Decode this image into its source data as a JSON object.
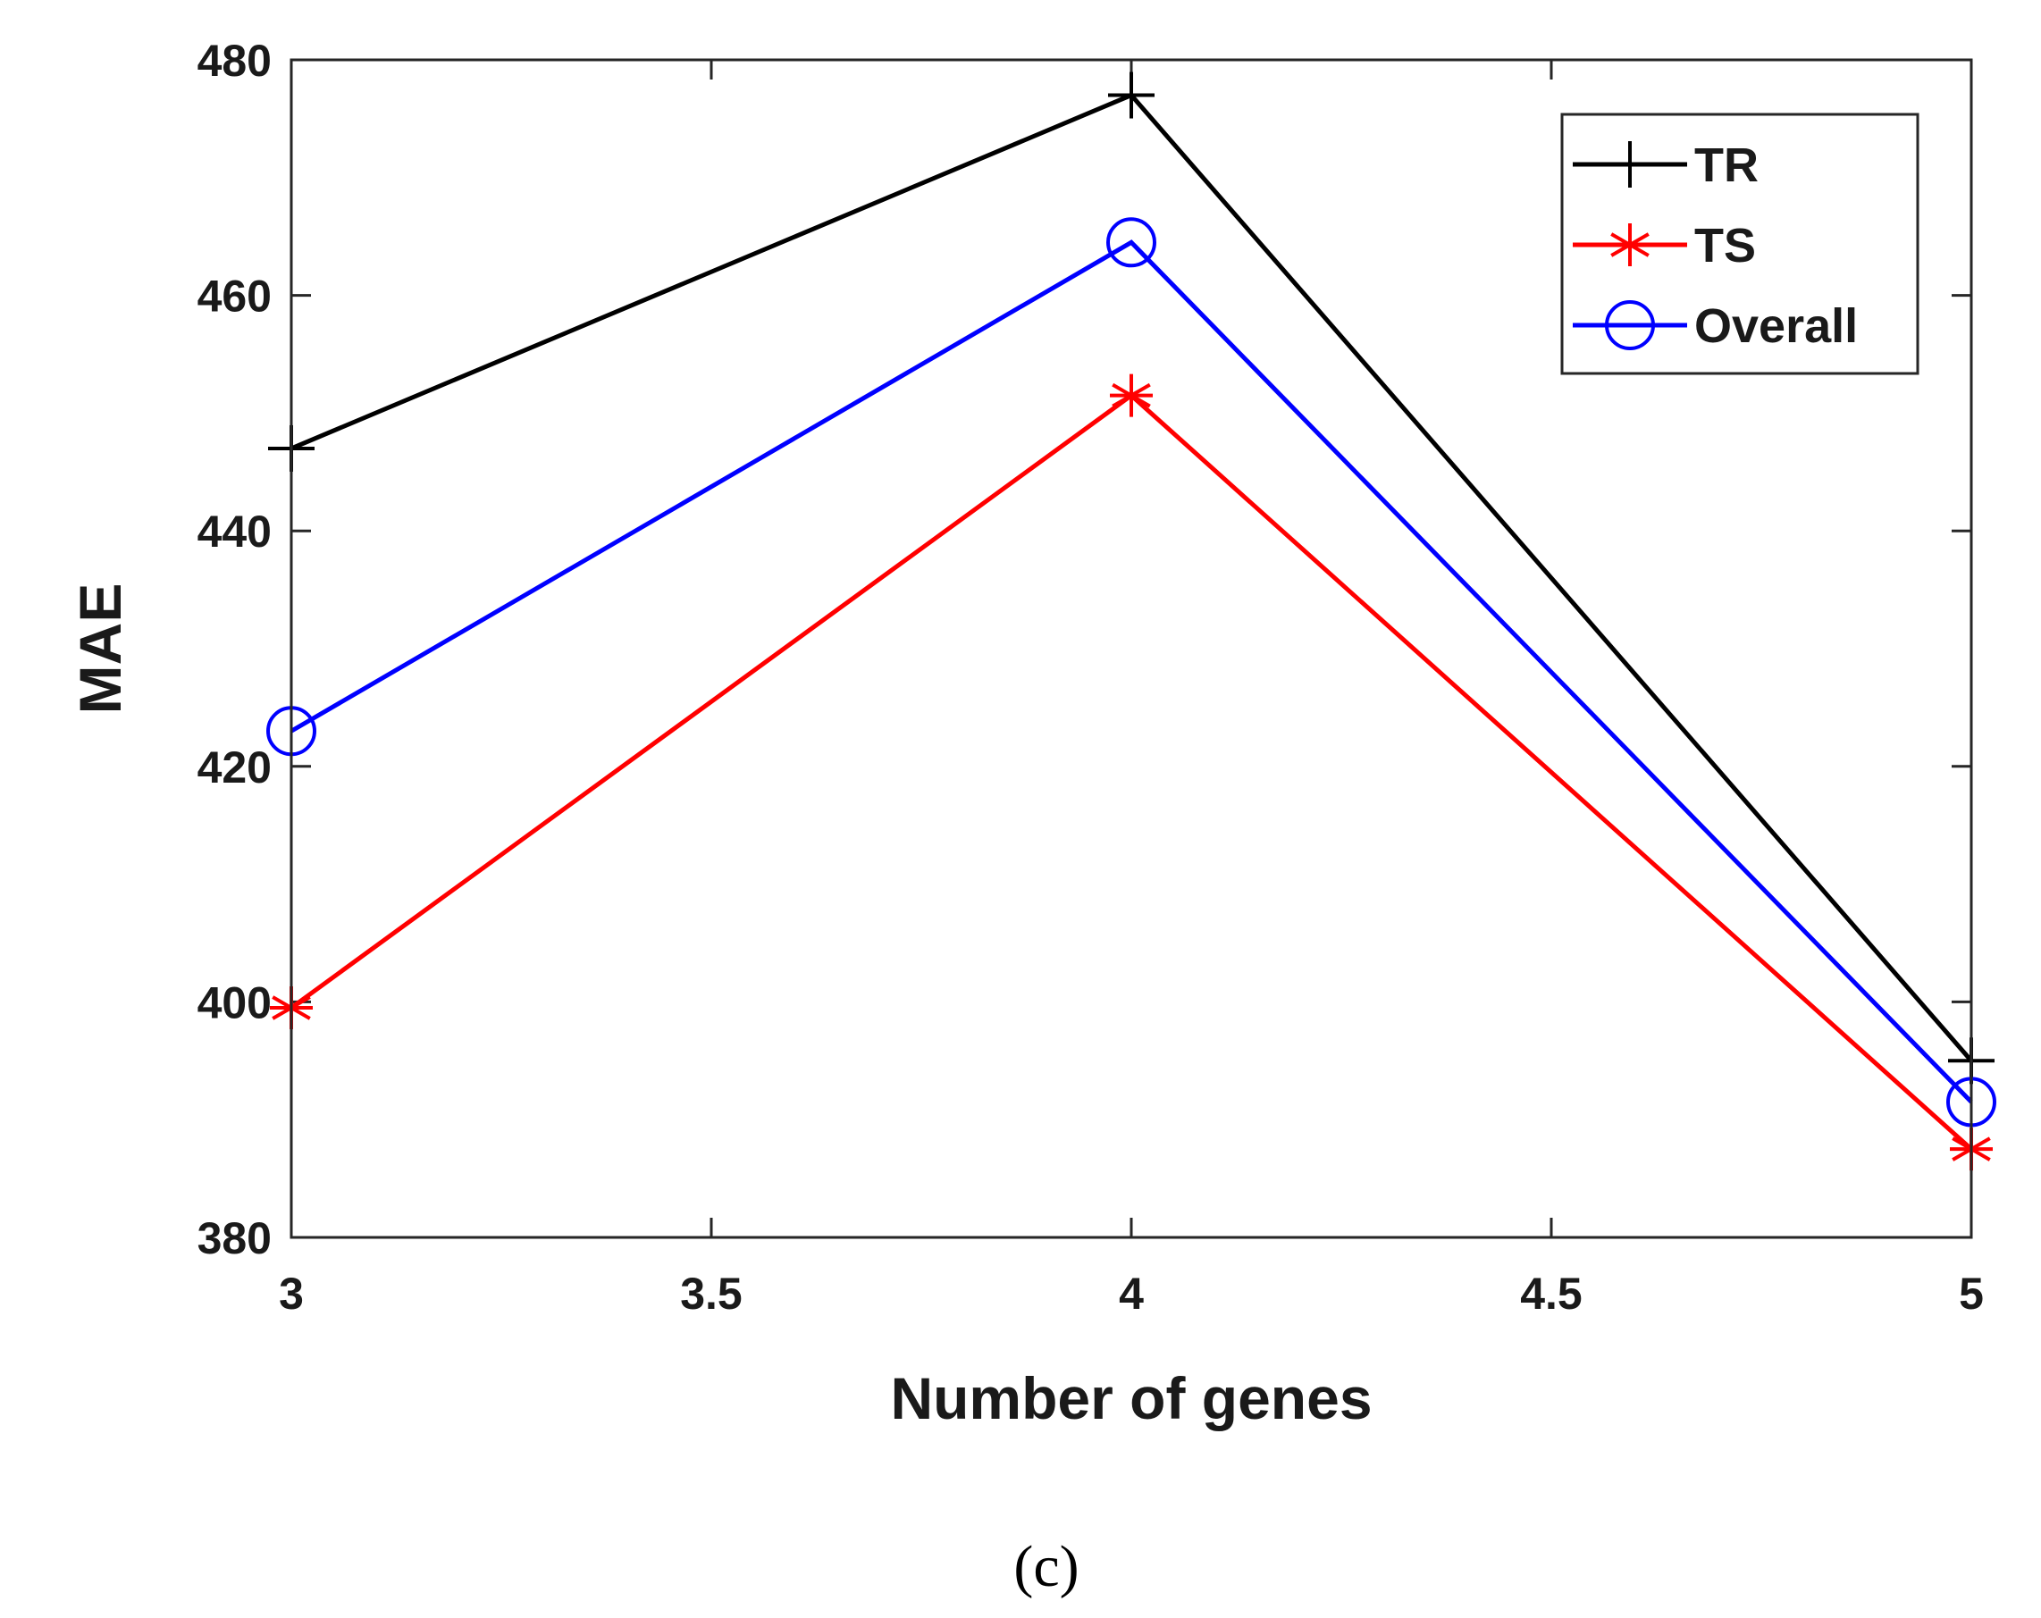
{
  "chart_data": {
    "type": "line",
    "xlabel": "Number of genes",
    "ylabel": "MAE",
    "xlim": [
      3,
      5
    ],
    "ylim": [
      380,
      480
    ],
    "xticks": [
      "3",
      "3.5",
      "4",
      "4.5",
      "5"
    ],
    "yticks": [
      "380",
      "400",
      "420",
      "440",
      "460",
      "480"
    ],
    "x": [
      3,
      4,
      5
    ],
    "series": [
      {
        "name": "TR",
        "values": [
          447,
          477,
          395
        ],
        "color": "#000000",
        "marker": "plus"
      },
      {
        "name": "TS",
        "values": [
          399.5,
          451.5,
          387.5
        ],
        "color": "#ff0000",
        "marker": "asterisk"
      },
      {
        "name": "Overall",
        "values": [
          423,
          464.5,
          391.5
        ],
        "color": "#0000ff",
        "marker": "circle"
      }
    ],
    "legend_position": "top-right",
    "grid": false
  },
  "caption": "(c)"
}
